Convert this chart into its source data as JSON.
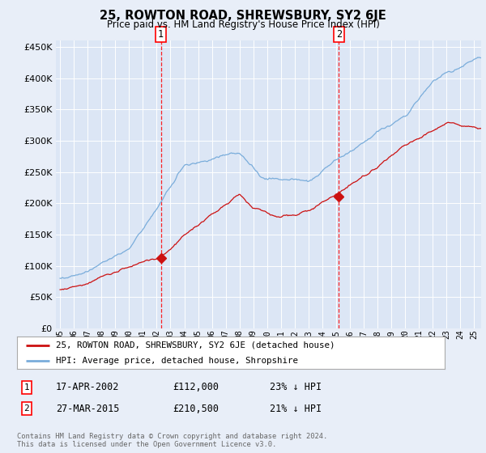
{
  "title": "25, ROWTON ROAD, SHREWSBURY, SY2 6JE",
  "subtitle": "Price paid vs. HM Land Registry's House Price Index (HPI)",
  "bg_color": "#e8eef8",
  "plot_bg_color": "#dce6f5",
  "legend_line1": "25, ROWTON ROAD, SHREWSBURY, SY2 6JE (detached house)",
  "legend_line2": "HPI: Average price, detached house, Shropshire",
  "sale1_date": "17-APR-2002",
  "sale1_price": "£112,000",
  "sale1_hpi": "23% ↓ HPI",
  "sale1_year": 2002.3,
  "sale1_value": 112000,
  "sale2_date": "27-MAR-2015",
  "sale2_price": "£210,500",
  "sale2_hpi": "21% ↓ HPI",
  "sale2_year": 2015.2,
  "sale2_value": 210500,
  "footer": "Contains HM Land Registry data © Crown copyright and database right 2024.\nThis data is licensed under the Open Government Licence v3.0.",
  "hpi_color": "#7aaddb",
  "sale_color": "#cc1111",
  "ylim": [
    0,
    460000
  ],
  "yticks": [
    0,
    50000,
    100000,
    150000,
    200000,
    250000,
    300000,
    350000,
    400000,
    450000
  ],
  "xlim_start": 1994.7,
  "xlim_end": 2025.5
}
